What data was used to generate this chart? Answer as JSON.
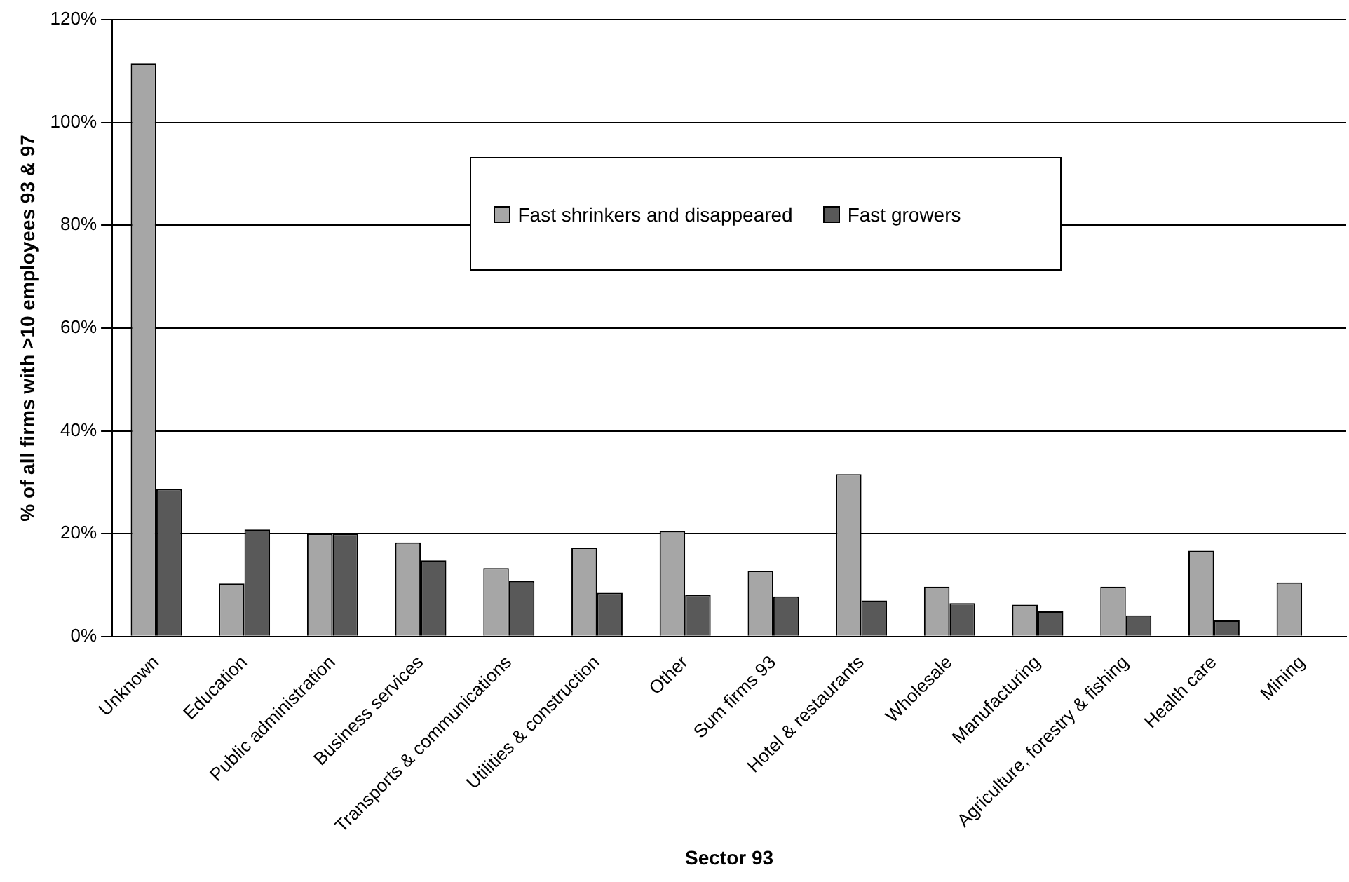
{
  "chart_data": {
    "type": "bar",
    "xlabel": "Sector 93",
    "ylabel": "% of all firms with >10 employees 93 & 97",
    "categories": [
      "Unknown",
      "Education",
      "Public administration",
      "Business services",
      "Transports & communications",
      "Utilities & construction",
      "Other",
      "Sum firms 93",
      "Hotel & restaurants",
      "Wholesale",
      "Manufacturing",
      "Agriculture, forestry & fishing",
      "Health care",
      "Mining"
    ],
    "series": [
      {
        "name": "Fast shrinkers and disappeared",
        "color": "#a6a6a6",
        "values": [
          111.5,
          10.3,
          20,
          18.3,
          13.3,
          17.3,
          20.5,
          12.8,
          31.6,
          9.7,
          6.2,
          9.7,
          16.7,
          10.5
        ]
      },
      {
        "name": "Fast growers",
        "color": "#595959",
        "values": [
          28.7,
          20.8,
          20,
          14.8,
          10.8,
          8.5,
          8.1,
          7.8,
          7,
          6.5,
          4.9,
          4.1,
          3.1,
          null
        ]
      }
    ],
    "ylim": [
      0,
      120
    ],
    "yticks": [
      {
        "value": 0,
        "label": "0%"
      },
      {
        "value": 20,
        "label": "20%"
      },
      {
        "value": 40,
        "label": "40%"
      },
      {
        "value": 60,
        "label": "60%"
      },
      {
        "value": 80,
        "label": "80%"
      },
      {
        "value": 100,
        "label": "100%"
      },
      {
        "value": 120,
        "label": "120%"
      }
    ],
    "grid": "y",
    "legend": "top right"
  }
}
